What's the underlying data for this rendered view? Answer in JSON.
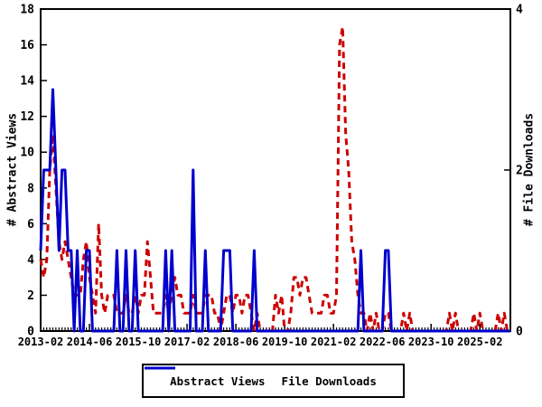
{
  "chart_data": {
    "type": "line",
    "title": "",
    "x_start": "2013-02",
    "x_interval": "monthly",
    "x_tick_months": [
      0,
      16,
      32,
      48,
      64,
      80,
      96,
      112,
      128,
      144
    ],
    "x_tick_labels": [
      "2013-02",
      "2014-06",
      "2015-10",
      "2017-02",
      "2018-06",
      "2019-10",
      "2021-02",
      "2022-06",
      "2023-10",
      "2025-02"
    ],
    "left_axis": {
      "label": "# Abstract Views",
      "range": [
        0,
        18
      ],
      "ticks": [
        0,
        2,
        4,
        6,
        8,
        10,
        12,
        14,
        16,
        18
      ]
    },
    "right_axis": {
      "label": "# File Downloads",
      "range": [
        0,
        4
      ],
      "ticks": [
        0,
        2,
        4
      ]
    },
    "grid": false,
    "legend_position": "bottom-center",
    "series": [
      {
        "name": "Abstract Views",
        "axis": "left",
        "color": "#cc0000",
        "style": "dashed",
        "values": [
          4,
          3,
          4,
          9,
          11,
          8,
          5,
          4,
          5,
          4,
          3,
          2,
          2,
          2,
          4,
          5,
          3,
          2,
          1,
          6,
          2,
          1,
          2,
          2,
          2,
          1,
          1,
          1,
          2,
          1,
          1,
          2,
          1,
          2,
          2,
          5,
          3,
          1,
          1,
          1,
          1,
          2,
          1,
          2,
          3,
          2,
          2,
          1,
          1,
          1,
          2,
          1,
          1,
          1,
          2,
          2,
          2,
          1,
          1,
          0,
          1,
          2,
          2,
          1,
          2,
          2,
          1,
          2,
          2,
          1,
          0,
          1,
          0,
          0,
          0,
          0,
          0,
          2,
          1,
          2,
          0,
          0,
          1,
          3,
          3,
          2,
          3,
          3,
          2,
          1,
          1,
          1,
          1,
          2,
          2,
          1,
          1,
          2,
          16,
          17,
          11,
          9,
          5,
          4,
          2,
          1,
          1,
          0,
          1,
          0,
          1,
          0,
          0,
          1,
          1,
          0,
          0,
          0,
          0,
          1,
          0,
          1,
          0,
          0,
          0,
          0,
          0,
          0,
          0,
          0,
          0,
          0,
          0,
          0,
          1,
          0,
          1,
          0,
          0,
          0,
          0,
          0,
          1,
          0,
          1,
          0,
          0,
          0,
          0,
          0,
          1,
          0,
          1,
          0,
          0
        ]
      },
      {
        "name": "File Downloads",
        "axis": "right",
        "color": "#0000cc",
        "style": "solid",
        "values": [
          1,
          2,
          2,
          2,
          3,
          2,
          1,
          2,
          2,
          1,
          1,
          0,
          1,
          0,
          0,
          1,
          1,
          0,
          0,
          0,
          0,
          0,
          0,
          0,
          0,
          1,
          0,
          0,
          1,
          0,
          0,
          1,
          0,
          0,
          0,
          0,
          0,
          0,
          0,
          0,
          0,
          1,
          0,
          1,
          0,
          0,
          0,
          0,
          0,
          0,
          2,
          0,
          0,
          0,
          1,
          0,
          0,
          0,
          0,
          0,
          1,
          1,
          1,
          0,
          0,
          0,
          0,
          0,
          0,
          0,
          1,
          0,
          0,
          0,
          0,
          0,
          0,
          0,
          0,
          0,
          0,
          0,
          0,
          0,
          0,
          0,
          0,
          0,
          0,
          0,
          0,
          0,
          0,
          0,
          0,
          0,
          0,
          0,
          0,
          0,
          0,
          0,
          0,
          0,
          0,
          1,
          0,
          0,
          0,
          0,
          0,
          0,
          0,
          1,
          1,
          0,
          0,
          0,
          0,
          0,
          0,
          0,
          0,
          0,
          0,
          0,
          0,
          0,
          0,
          0,
          0,
          0,
          0,
          0,
          0,
          0,
          0,
          0,
          0,
          0,
          0,
          0,
          0,
          0,
          0,
          0,
          0,
          0,
          0,
          0,
          0,
          0,
          0,
          0,
          0
        ]
      }
    ]
  }
}
